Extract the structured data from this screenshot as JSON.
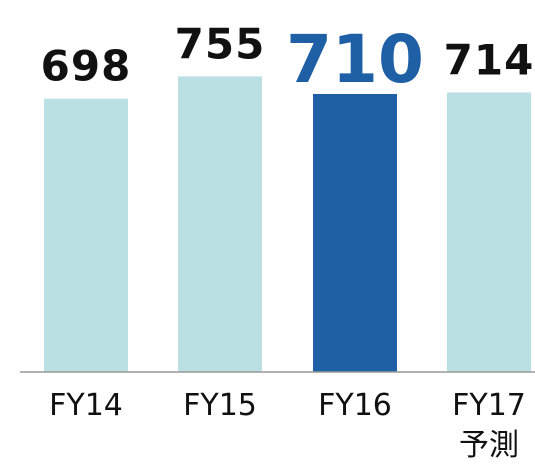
{
  "chart_data": {
    "type": "bar",
    "categories": [
      "FY14",
      "FY15",
      "FY16",
      "FY17"
    ],
    "values": [
      698,
      755,
      710,
      714
    ],
    "colors": [
      "#bbe0e3",
      "#bbe0e3",
      "#1f5fa6",
      "#bbe0e3"
    ],
    "highlight": 2,
    "forecast_note": {
      "category": 3,
      "text": "予測"
    },
    "ylim": [
      0,
      950
    ]
  }
}
